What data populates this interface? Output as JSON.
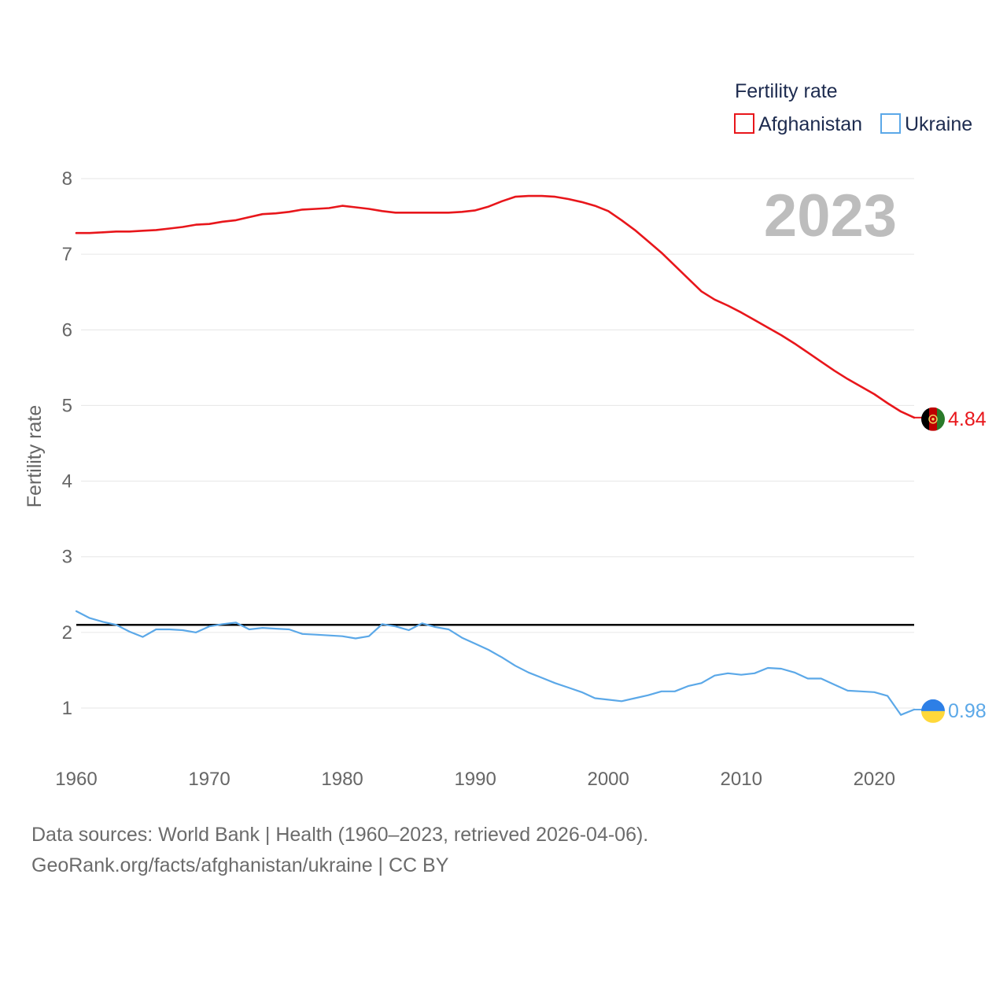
{
  "colors": {
    "afghanistan": "#e8161b",
    "ukraine": "#5ba8e8",
    "reference_line": "#000000",
    "grid": "#e6e6e6",
    "tick_text": "#666666",
    "year_watermark": "#bdbdbd",
    "legend_text": "#1d2b4f"
  },
  "chart_data": {
    "type": "line",
    "title": "Fertility rate",
    "ylabel": "Fertility rate",
    "xlabel": "",
    "xlim": [
      1960,
      2023
    ],
    "ylim": [
      0,
      8.3
    ],
    "x_ticks": [
      1960,
      1970,
      1980,
      1990,
      2000,
      2010,
      2020
    ],
    "y_ticks": [
      1,
      2,
      3,
      4,
      5,
      6,
      7,
      8
    ],
    "grid": true,
    "legend_position": "top-right",
    "year_label": "2023",
    "reference_line": {
      "y": 2.1
    },
    "series": [
      {
        "name": "Afghanistan",
        "color_key": "afghanistan",
        "end_label": "4.84",
        "marker_icon": "afghanistan-flag-icon",
        "x": [
          1960,
          1961,
          1962,
          1963,
          1964,
          1965,
          1966,
          1967,
          1968,
          1969,
          1970,
          1971,
          1972,
          1973,
          1974,
          1975,
          1976,
          1977,
          1978,
          1979,
          1980,
          1981,
          1982,
          1983,
          1984,
          1985,
          1986,
          1987,
          1988,
          1989,
          1990,
          1991,
          1992,
          1993,
          1994,
          1995,
          1996,
          1997,
          1998,
          1999,
          2000,
          2001,
          2002,
          2003,
          2004,
          2005,
          2006,
          2007,
          2008,
          2009,
          2010,
          2011,
          2012,
          2013,
          2014,
          2015,
          2016,
          2017,
          2018,
          2019,
          2020,
          2021,
          2022,
          2023
        ],
        "values": [
          7.28,
          7.28,
          7.29,
          7.3,
          7.3,
          7.31,
          7.32,
          7.34,
          7.36,
          7.39,
          7.4,
          7.43,
          7.45,
          7.49,
          7.53,
          7.54,
          7.56,
          7.59,
          7.6,
          7.61,
          7.64,
          7.62,
          7.6,
          7.57,
          7.55,
          7.55,
          7.55,
          7.55,
          7.55,
          7.56,
          7.58,
          7.63,
          7.7,
          7.76,
          7.77,
          7.77,
          7.76,
          7.73,
          7.69,
          7.64,
          7.57,
          7.45,
          7.32,
          7.17,
          7.02,
          6.85,
          6.68,
          6.51,
          6.4,
          6.32,
          6.23,
          6.13,
          6.03,
          5.93,
          5.82,
          5.7,
          5.58,
          5.46,
          5.35,
          5.25,
          5.15,
          5.03,
          4.92,
          4.84
        ]
      },
      {
        "name": "Ukraine",
        "color_key": "ukraine",
        "end_label": "0.98",
        "marker_icon": "ukraine-flag-icon",
        "x": [
          1960,
          1961,
          1962,
          1963,
          1964,
          1965,
          1966,
          1967,
          1968,
          1969,
          1970,
          1971,
          1972,
          1973,
          1974,
          1975,
          1976,
          1977,
          1978,
          1979,
          1980,
          1981,
          1982,
          1983,
          1984,
          1985,
          1986,
          1987,
          1988,
          1989,
          1990,
          1991,
          1992,
          1993,
          1994,
          1995,
          1996,
          1997,
          1998,
          1999,
          2000,
          2001,
          2002,
          2003,
          2004,
          2005,
          2006,
          2007,
          2008,
          2009,
          2010,
          2011,
          2012,
          2013,
          2014,
          2015,
          2016,
          2017,
          2018,
          2019,
          2020,
          2021,
          2022,
          2023
        ],
        "values": [
          2.28,
          2.19,
          2.14,
          2.1,
          2.01,
          1.94,
          2.04,
          2.04,
          2.03,
          2.0,
          2.08,
          2.11,
          2.13,
          2.04,
          2.06,
          2.05,
          2.04,
          1.98,
          1.97,
          1.96,
          1.95,
          1.92,
          1.95,
          2.11,
          2.08,
          2.03,
          2.12,
          2.07,
          2.04,
          1.93,
          1.85,
          1.77,
          1.67,
          1.56,
          1.47,
          1.4,
          1.33,
          1.27,
          1.21,
          1.13,
          1.11,
          1.09,
          1.13,
          1.17,
          1.22,
          1.22,
          1.29,
          1.33,
          1.43,
          1.46,
          1.44,
          1.46,
          1.53,
          1.52,
          1.47,
          1.39,
          1.39,
          1.31,
          1.23,
          1.22,
          1.21,
          1.16,
          0.91,
          0.98
        ]
      }
    ]
  },
  "footer": {
    "sources": "Data sources: World Bank | Health (1960–2023, retrieved 2026-04-06).",
    "attribution": "GeoRank.org/facts/afghanistan/ukraine | CC BY"
  }
}
